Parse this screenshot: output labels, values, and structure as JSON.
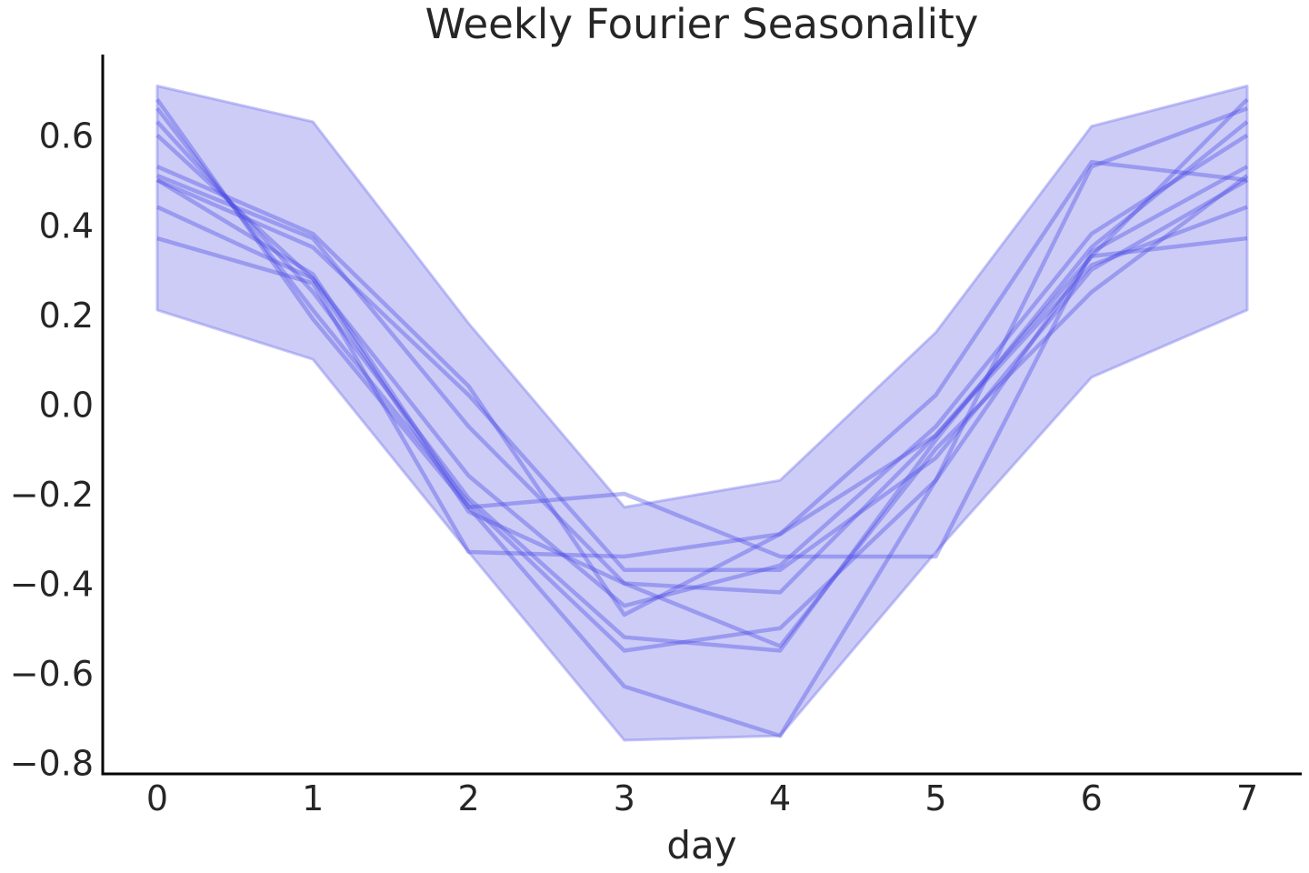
{
  "chart_data": {
    "type": "line",
    "title": "Weekly Fourier Seasonality",
    "xlabel": "day",
    "ylabel": "",
    "x": [
      0,
      1,
      2,
      3,
      4,
      5,
      6,
      7
    ],
    "xticks": [
      "0",
      "1",
      "2",
      "3",
      "4",
      "5",
      "6",
      "7"
    ],
    "yticks": [
      "0.6",
      "0.4",
      "0.2",
      "0.0",
      "−0.2",
      "−0.4",
      "−0.6",
      "−0.8"
    ],
    "ytick_values": [
      0.6,
      0.4,
      0.2,
      0.0,
      -0.2,
      -0.4,
      -0.6,
      -0.8
    ],
    "xlim": [
      -0.35,
      7.35
    ],
    "ylim": [
      -0.825,
      0.78
    ],
    "band": {
      "upper": [
        0.71,
        0.63,
        0.18,
        -0.23,
        -0.17,
        0.16,
        0.62,
        0.71
      ],
      "lower": [
        0.21,
        0.1,
        -0.33,
        -0.75,
        -0.74,
        -0.33,
        0.06,
        0.21
      ]
    },
    "series": [
      {
        "values": [
          0.68,
          0.19,
          -0.23,
          -0.63,
          -0.74,
          -0.17,
          0.33,
          0.68
        ]
      },
      {
        "values": [
          0.66,
          0.21,
          -0.22,
          -0.55,
          -0.5,
          -0.17,
          0.53,
          0.66
        ]
      },
      {
        "values": [
          0.63,
          0.25,
          -0.21,
          -0.52,
          -0.55,
          -0.08,
          0.35,
          0.63
        ]
      },
      {
        "values": [
          0.6,
          0.28,
          -0.16,
          -0.45,
          -0.36,
          -0.05,
          0.38,
          0.6
        ]
      },
      {
        "values": [
          0.53,
          0.38,
          0.04,
          -0.47,
          -0.29,
          0.02,
          0.54,
          0.5
        ]
      },
      {
        "values": [
          0.51,
          0.37,
          -0.05,
          -0.4,
          -0.54,
          -0.1,
          0.25,
          0.51
        ]
      },
      {
        "values": [
          0.5,
          0.35,
          0.02,
          -0.37,
          -0.37,
          -0.12,
          0.3,
          0.5
        ]
      },
      {
        "values": [
          0.5,
          0.29,
          -0.23,
          -0.2,
          -0.34,
          -0.34,
          0.34,
          0.53
        ]
      },
      {
        "values": [
          0.44,
          0.28,
          -0.24,
          -0.4,
          -0.42,
          -0.07,
          0.31,
          0.44
        ]
      },
      {
        "values": [
          0.37,
          0.27,
          -0.33,
          -0.34,
          -0.29,
          -0.07,
          0.33,
          0.37
        ]
      }
    ],
    "colors": {
      "line": "#4949e6",
      "band_fill": "#9999f0",
      "band_edge": "#7f7fee",
      "axis": "#000000",
      "text": "#262626"
    },
    "grid": false,
    "legend": "none"
  }
}
